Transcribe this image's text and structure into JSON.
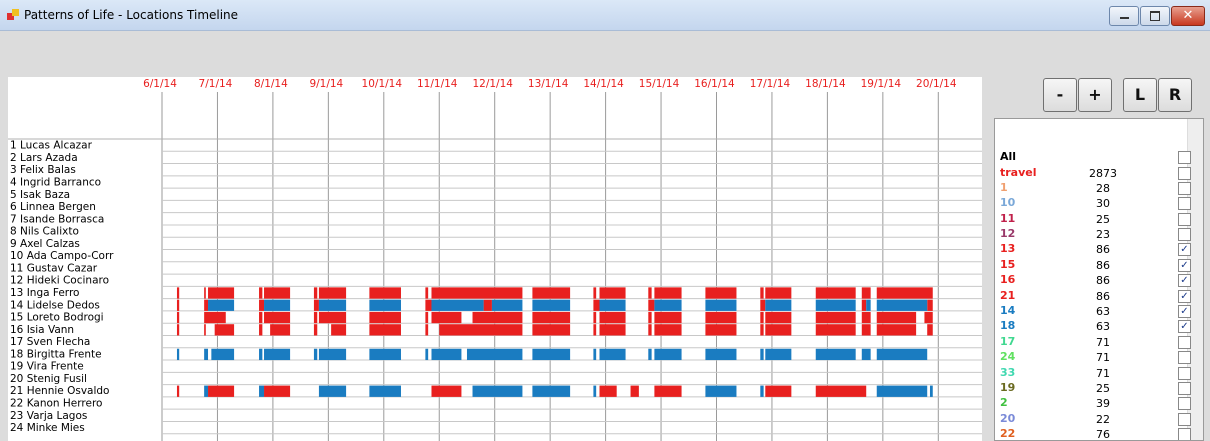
{
  "window": {
    "title": "Patterns of Life - Locations Timeline"
  },
  "buttons": [
    "-",
    "+",
    "L",
    "R"
  ],
  "timeline": {
    "dates": [
      "6/1/14",
      "7/1/14",
      "8/1/14",
      "9/1/14",
      "10/1/14",
      "11/1/14",
      "12/1/14",
      "13/1/14",
      "14/1/14",
      "15/1/14",
      "16/1/14",
      "17/1/14",
      "18/1/14",
      "19/1/14",
      "20/1/14"
    ],
    "rows": [
      {
        "name": "1 Lucas Alcazar",
        "segments": []
      },
      {
        "name": "2 Lars Azada",
        "segments": []
      },
      {
        "name": "3 Felix Balas",
        "segments": []
      },
      {
        "name": "4 Ingrid Barranco",
        "segments": []
      },
      {
        "name": "5 Isak Baza",
        "segments": []
      },
      {
        "name": "6 Linnea Bergen",
        "segments": []
      },
      {
        "name": "7 Isande Borrasca",
        "segments": []
      },
      {
        "name": "8 Nils Calixto",
        "segments": []
      },
      {
        "name": "9 Axel Calzas",
        "segments": []
      },
      {
        "name": "10  Ada  Campo-Corr",
        "segments": []
      },
      {
        "name": "11 Gustav Cazar",
        "segments": []
      },
      {
        "name": "12 Hideki Cocinaro",
        "segments": []
      },
      {
        "name": "13 Inga Ferro",
        "segments": [
          {
            "color": "#e8201f",
            "spans": [
              [
                0.27,
                0.31
              ],
              [
                0.76,
                0.79
              ],
              [
                0.83,
                1.3
              ],
              [
                1.75,
                1.81
              ],
              [
                1.84,
                2.31
              ],
              [
                2.74,
                2.8
              ],
              [
                2.83,
                3.32
              ],
              [
                3.74,
                4.31
              ],
              [
                4.75,
                4.8
              ],
              [
                4.86,
                6.5
              ],
              [
                6.68,
                7.36
              ],
              [
                7.78,
                7.83
              ],
              [
                7.89,
                8.36
              ],
              [
                8.77,
                8.83
              ],
              [
                8.88,
                9.37
              ],
              [
                9.8,
                10.36
              ],
              [
                10.79,
                10.85
              ],
              [
                10.88,
                11.35
              ],
              [
                11.79,
                12.51
              ],
              [
                12.62,
                12.78
              ],
              [
                12.89,
                13.9
              ]
            ]
          }
        ]
      },
      {
        "name": "14 Lidelse Dedos",
        "segments": [
          {
            "color": "#e8201f",
            "spans": [
              [
                0.27,
                0.31
              ],
              [
                0.76,
                0.83
              ],
              [
                1.75,
                1.84
              ],
              [
                2.74,
                2.83
              ],
              [
                4.75,
                4.86
              ],
              [
                5.8,
                5.95
              ],
              [
                7.78,
                7.89
              ],
              [
                8.77,
                8.88
              ],
              [
                10.79,
                10.88
              ],
              [
                12.62,
                12.7
              ],
              [
                13.8,
                13.9
              ]
            ]
          },
          {
            "color": "#1a7cc1",
            "spans": [
              [
                0.83,
                1.3
              ],
              [
                1.84,
                2.31
              ],
              [
                2.83,
                3.32
              ],
              [
                3.74,
                4.31
              ],
              [
                4.86,
                5.8
              ],
              [
                5.95,
                6.5
              ],
              [
                6.68,
                7.36
              ],
              [
                7.89,
                8.36
              ],
              [
                8.88,
                9.37
              ],
              [
                9.8,
                10.36
              ],
              [
                10.88,
                11.35
              ],
              [
                11.79,
                12.51
              ],
              [
                12.7,
                12.78
              ],
              [
                12.89,
                13.8
              ]
            ]
          }
        ]
      },
      {
        "name": "15 Loreto Bodrogi",
        "segments": [
          {
            "color": "#e8201f",
            "spans": [
              [
                0.27,
                0.31
              ],
              [
                0.76,
                1.15
              ],
              [
                1.75,
                1.81
              ],
              [
                1.84,
                2.31
              ],
              [
                2.74,
                2.8
              ],
              [
                2.83,
                3.32
              ],
              [
                3.74,
                4.31
              ],
              [
                4.75,
                4.8
              ],
              [
                4.86,
                5.4
              ],
              [
                5.6,
                6.5
              ],
              [
                6.68,
                7.36
              ],
              [
                7.78,
                7.83
              ],
              [
                7.89,
                8.36
              ],
              [
                8.77,
                8.83
              ],
              [
                8.88,
                9.37
              ],
              [
                9.8,
                10.36
              ],
              [
                10.79,
                10.85
              ],
              [
                10.88,
                11.35
              ],
              [
                11.79,
                12.51
              ],
              [
                12.62,
                12.78
              ],
              [
                12.89,
                13.6
              ],
              [
                13.75,
                13.9
              ]
            ]
          }
        ]
      },
      {
        "name": "16 Isia Vann",
        "segments": [
          {
            "color": "#e8201f",
            "spans": [
              [
                0.27,
                0.31
              ],
              [
                0.76,
                0.79
              ],
              [
                0.95,
                1.3
              ],
              [
                1.75,
                1.81
              ],
              [
                1.95,
                2.31
              ],
              [
                2.74,
                2.8
              ],
              [
                3.05,
                3.32
              ],
              [
                3.74,
                4.31
              ],
              [
                4.75,
                4.8
              ],
              [
                5.0,
                6.5
              ],
              [
                6.68,
                7.36
              ],
              [
                7.78,
                7.83
              ],
              [
                7.89,
                8.36
              ],
              [
                8.77,
                8.83
              ],
              [
                8.88,
                9.37
              ],
              [
                9.8,
                10.36
              ],
              [
                10.79,
                10.85
              ],
              [
                10.88,
                11.35
              ],
              [
                11.79,
                12.51
              ],
              [
                12.62,
                12.78
              ],
              [
                12.89,
                13.6
              ],
              [
                13.8,
                13.9
              ]
            ]
          }
        ]
      },
      {
        "name": "17 Sven Flecha",
        "segments": []
      },
      {
        "name": "18 Birgitta Frente",
        "segments": [
          {
            "color": "#1a7cc1",
            "spans": [
              [
                0.27,
                0.31
              ],
              [
                0.76,
                0.83
              ],
              [
                0.89,
                1.3
              ],
              [
                1.75,
                1.81
              ],
              [
                1.84,
                2.31
              ],
              [
                2.74,
                2.8
              ],
              [
                2.83,
                3.32
              ],
              [
                3.74,
                4.31
              ],
              [
                4.75,
                4.8
              ],
              [
                4.86,
                5.4
              ],
              [
                5.5,
                6.5
              ],
              [
                6.68,
                7.36
              ],
              [
                7.78,
                7.83
              ],
              [
                7.89,
                8.36
              ],
              [
                8.77,
                8.83
              ],
              [
                8.88,
                9.37
              ],
              [
                9.8,
                10.36
              ],
              [
                10.79,
                10.85
              ],
              [
                10.88,
                11.35
              ],
              [
                11.79,
                12.51
              ],
              [
                12.62,
                12.78
              ],
              [
                12.89,
                13.8
              ]
            ]
          }
        ]
      },
      {
        "name": "19 Vira Frente",
        "segments": []
      },
      {
        "name": "20 Stenig Fusil",
        "segments": []
      },
      {
        "name": "21 Hennie Osvaldo",
        "segments": [
          {
            "color": "#e8201f",
            "spans": [
              [
                0.27,
                0.31
              ],
              [
                0.83,
                1.3
              ],
              [
                1.84,
                2.31
              ],
              [
                4.86,
                5.4
              ],
              [
                7.89,
                8.2
              ],
              [
                8.45,
                8.6
              ],
              [
                8.88,
                9.37
              ],
              [
                10.88,
                11.35
              ],
              [
                11.79,
                12.7
              ]
            ]
          },
          {
            "color": "#1a7cc1",
            "spans": [
              [
                0.76,
                0.83
              ],
              [
                1.75,
                1.84
              ],
              [
                2.83,
                3.32
              ],
              [
                3.74,
                4.31
              ],
              [
                5.6,
                6.5
              ],
              [
                6.68,
                7.36
              ],
              [
                7.78,
                7.83
              ],
              [
                9.8,
                10.36
              ],
              [
                10.79,
                10.85
              ],
              [
                12.89,
                13.8
              ],
              [
                13.85,
                13.9
              ]
            ]
          }
        ]
      },
      {
        "name": "22 Kanon Herrero",
        "segments": []
      },
      {
        "name": "23 Varja Lagos",
        "segments": []
      },
      {
        "name": "24 Minke Mies",
        "segments": []
      }
    ]
  },
  "legend": [
    {
      "label": "All",
      "color": "#000000",
      "checked": false
    },
    {
      "label": "travel",
      "color": "#e8201f",
      "count": 2873,
      "checked": false
    },
    {
      "label": "1",
      "color": "#f0a070",
      "count": 28,
      "checked": false
    },
    {
      "label": "10",
      "color": "#7aa8d8",
      "count": 30,
      "checked": false
    },
    {
      "label": "11",
      "color": "#c0204a",
      "count": 25,
      "checked": false
    },
    {
      "label": "12",
      "color": "#9a3a6a",
      "count": 23,
      "checked": false
    },
    {
      "label": "13",
      "color": "#e8201f",
      "count": 86,
      "checked": true
    },
    {
      "label": "15",
      "color": "#e8201f",
      "count": 86,
      "checked": true
    },
    {
      "label": "16",
      "color": "#e8201f",
      "count": 86,
      "checked": true
    },
    {
      "label": "21",
      "color": "#e8201f",
      "count": 86,
      "checked": true
    },
    {
      "label": "14",
      "color": "#1a7cc1",
      "count": 63,
      "checked": true
    },
    {
      "label": "18",
      "color": "#1a7cc1",
      "count": 63,
      "checked": true
    },
    {
      "label": "17",
      "color": "#40d890",
      "count": 71,
      "checked": false
    },
    {
      "label": "24",
      "color": "#60e060",
      "count": 71,
      "checked": false
    },
    {
      "label": "33",
      "color": "#40d8b0",
      "count": 71,
      "checked": false
    },
    {
      "label": "19",
      "color": "#6a6a20",
      "count": 25,
      "checked": false
    },
    {
      "label": "2",
      "color": "#40c040",
      "count": 39,
      "checked": false
    },
    {
      "label": "20",
      "color": "#7a8ad8",
      "count": 22,
      "checked": false
    },
    {
      "label": "22",
      "color": "#e06020",
      "count": 76,
      "checked": false
    }
  ]
}
